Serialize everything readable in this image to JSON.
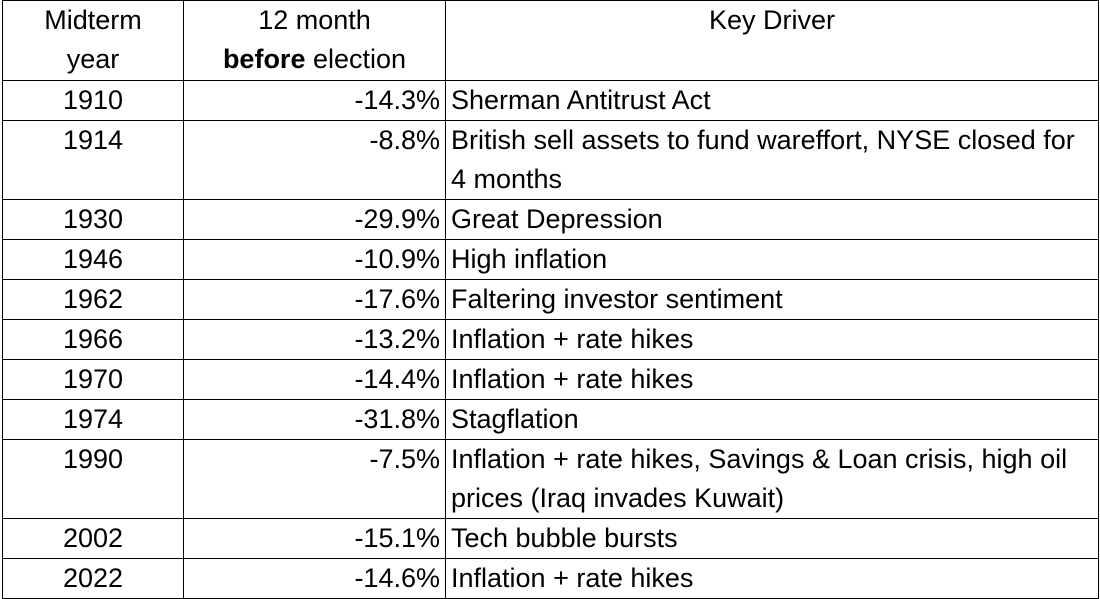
{
  "header": {
    "year": [
      "Midterm",
      "year"
    ],
    "change": {
      "line1": "12 month",
      "bold": "before",
      "rest": "election"
    },
    "driver": "Key Driver"
  },
  "table": {
    "rows": [
      [
        "1910",
        "-14.3%",
        "Sherman Antitrust Act"
      ],
      [
        "1914",
        "-8.8%",
        "British sell assets to fund wareffort, NYSE closed for 4 months"
      ],
      [
        "1930",
        "-29.9%",
        "Great Depression"
      ],
      [
        "1946",
        "-10.9%",
        "High inflation"
      ],
      [
        "1962",
        "-17.6%",
        "Faltering investor sentiment"
      ],
      [
        "1966",
        "-13.2%",
        "Inflation + rate hikes"
      ],
      [
        "1970",
        "-14.4%",
        "Inflation + rate hikes"
      ],
      [
        "1974",
        "-31.8%",
        "Stagflation"
      ],
      [
        "1990",
        "-7.5%",
        "Inflation + rate hikes, Savings & Loan crisis, high oil prices (Iraq invades Kuwait)"
      ],
      [
        "2002",
        "-15.1%",
        "Tech bubble bursts"
      ],
      [
        "2022",
        "-14.6%",
        "Inflation + rate hikes"
      ]
    ]
  }
}
